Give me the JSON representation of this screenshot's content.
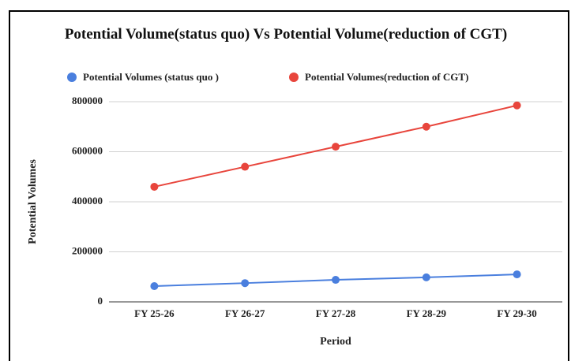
{
  "chart_data": {
    "type": "line",
    "title": "Potential Volume(status quo) Vs Potential Volume(reduction of CGT)",
    "x_label": "Period",
    "y_label": "Potential Volumes",
    "categories": [
      "FY 25-26",
      "FY 26-27",
      "FY 27-28",
      "FY 28-29",
      "FY 29-30"
    ],
    "series": [
      {
        "name": "Potential Volumes (status quo )",
        "color": "#4a7fde",
        "values": [
          63000,
          75000,
          88000,
          98000,
          110000
        ]
      },
      {
        "name": "Potential Volumes(reduction of CGT)",
        "color": "#e8453c",
        "values": [
          460000,
          540000,
          620000,
          700000,
          785000
        ]
      }
    ],
    "ylim": [
      0,
      800000
    ],
    "yticks": [
      0,
      200000,
      400000,
      600000,
      800000
    ],
    "grid": true,
    "legend": "top"
  }
}
